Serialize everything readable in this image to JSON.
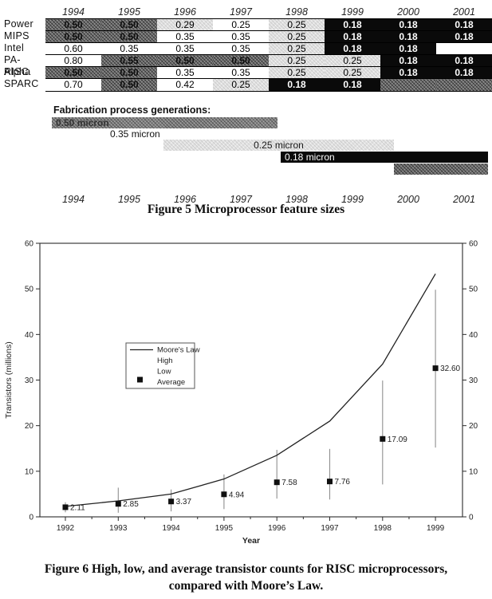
{
  "feature_table": {
    "years": [
      "1994",
      "1995",
      "1996",
      "1997",
      "1998",
      "1999",
      "2000",
      "2001"
    ],
    "rows": [
      {
        "label": "Power",
        "cells": [
          {
            "v": "0.50",
            "s": "dark"
          },
          {
            "v": "0.50",
            "s": "dark"
          },
          {
            "v": "0.29",
            "s": "light"
          },
          {
            "v": "0.25",
            "s": "white"
          },
          {
            "v": "0.25",
            "s": "light"
          },
          {
            "v": "0.18",
            "s": "black"
          },
          {
            "v": "0.18",
            "s": "black"
          },
          {
            "v": "0.18",
            "s": "black"
          }
        ]
      },
      {
        "label": "MIPS",
        "cells": [
          {
            "v": "0.50",
            "s": "dark"
          },
          {
            "v": "0.50",
            "s": "dark"
          },
          {
            "v": "0.35",
            "s": "white"
          },
          {
            "v": "0.35",
            "s": "white"
          },
          {
            "v": "0.25",
            "s": "light"
          },
          {
            "v": "0.18",
            "s": "black"
          },
          {
            "v": "0.18",
            "s": "black"
          },
          {
            "v": "0.18",
            "s": "black"
          }
        ]
      },
      {
        "label": "Intel",
        "cells": [
          {
            "v": "0.60",
            "s": "white"
          },
          {
            "v": "0.35",
            "s": "white"
          },
          {
            "v": "0.35",
            "s": "white"
          },
          {
            "v": "0.35",
            "s": "white"
          },
          {
            "v": "0.25",
            "s": "light"
          },
          {
            "v": "0.18",
            "s": "black"
          },
          {
            "v": "0.18",
            "s": "black"
          },
          {
            "v": "",
            "s": "empty"
          }
        ]
      },
      {
        "label": "PA-RISC",
        "cells": [
          {
            "v": "0.80",
            "s": "white"
          },
          {
            "v": "0.55",
            "s": "dark"
          },
          {
            "v": "0.50",
            "s": "dark"
          },
          {
            "v": "0.50",
            "s": "dark"
          },
          {
            "v": "0.25",
            "s": "light"
          },
          {
            "v": "0.25",
            "s": "light"
          },
          {
            "v": "0.18",
            "s": "black"
          },
          {
            "v": "0.18",
            "s": "black"
          }
        ]
      },
      {
        "label": "Alpha",
        "cells": [
          {
            "v": "0.50",
            "s": "dark"
          },
          {
            "v": "0.50",
            "s": "dark"
          },
          {
            "v": "0.35",
            "s": "white"
          },
          {
            "v": "0.35",
            "s": "white"
          },
          {
            "v": "0.25",
            "s": "light"
          },
          {
            "v": "0.25",
            "s": "light"
          },
          {
            "v": "0.18",
            "s": "black"
          },
          {
            "v": "0.18",
            "s": "black"
          }
        ]
      },
      {
        "label": "SPARC",
        "cells": [
          {
            "v": "0.70",
            "s": "white"
          },
          {
            "v": "0.50",
            "s": "dark"
          },
          {
            "v": "0.42",
            "s": "white"
          },
          {
            "v": "0.25",
            "s": "light"
          },
          {
            "v": "0.18",
            "s": "black"
          },
          {
            "v": "0.18",
            "s": "black"
          },
          {
            "v": "",
            "s": "dark"
          },
          {
            "v": "",
            "s": "dark"
          }
        ]
      }
    ]
  },
  "fabrication": {
    "title": "Fabrication process generations:",
    "bars": [
      {
        "label": "0.50 micron",
        "style": "dark"
      },
      {
        "label": "0.35 micron",
        "style": "none"
      },
      {
        "label": "0.25 micron",
        "style": "light"
      },
      {
        "label": "0.18 micron",
        "style": "black"
      },
      {
        "label": "",
        "style": "dark"
      }
    ],
    "years": [
      "1994",
      "1995",
      "1996",
      "1997",
      "1998",
      "1999",
      "2000",
      "2001"
    ]
  },
  "figure5_caption": "Figure 5 Microprocessor feature sizes",
  "chart_data": {
    "type": "line",
    "xlabel": "Year",
    "ylabel": "Transistors (millions)",
    "x": [
      1992,
      1993,
      1994,
      1995,
      1996,
      1997,
      1998,
      1999
    ],
    "xticklabels": [
      "1992",
      "1993",
      "1994",
      "1995",
      "1996",
      "1997",
      "1998",
      "1999"
    ],
    "ylim": [
      0,
      60
    ],
    "yticks": [
      0,
      10,
      20,
      30,
      40,
      50,
      60
    ],
    "right_axis_mirrored": true,
    "grid": false,
    "legend_entries": [
      "Moore's Law",
      "High",
      "Low",
      "Average"
    ],
    "legend_position": "upper-left-inside",
    "series": [
      {
        "name": "Moore's Law",
        "type": "line",
        "values": [
          2.3,
          3.5,
          5.0,
          8.3,
          13.5,
          21.0,
          33.5,
          53.3
        ]
      },
      {
        "name": "High",
        "type": "range-high",
        "values": [
          3.2,
          6.4,
          6.0,
          9.3,
          14.7,
          14.9,
          29.9,
          49.8
        ]
      },
      {
        "name": "Low",
        "type": "range-low",
        "values": [
          1.0,
          0.9,
          1.2,
          1.7,
          4.0,
          3.8,
          7.1,
          15.2
        ]
      },
      {
        "name": "Average",
        "type": "scatter",
        "marker": "filled-square",
        "values": [
          2.11,
          2.85,
          3.37,
          4.94,
          7.58,
          7.76,
          17.09,
          32.6
        ],
        "point_labels": [
          "2.11",
          "2.85",
          "3.37",
          "4.94",
          "7.58",
          "7.76",
          "17.09",
          "32.60"
        ]
      }
    ]
  },
  "figure6_caption_line1": "Figure 6 High, low, and average transistor counts for RISC microprocessors,",
  "figure6_caption_line2": "compared with Moore’s Law."
}
